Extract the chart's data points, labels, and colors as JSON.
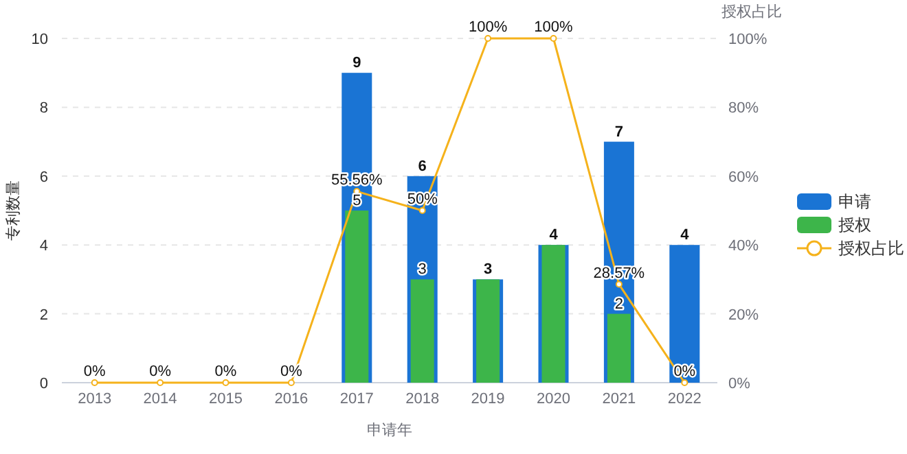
{
  "chart_data": {
    "type": "bar",
    "xlabel": "申请年",
    "ylabel": "专利数量",
    "y2label": "授权占比",
    "categories": [
      "2013",
      "2014",
      "2015",
      "2016",
      "2017",
      "2018",
      "2019",
      "2020",
      "2021",
      "2022"
    ],
    "series": [
      {
        "name": "申请",
        "color": "#1a74d4",
        "values": [
          0,
          0,
          0,
          0,
          9,
          6,
          3,
          4,
          7,
          4
        ],
        "value_labels": [
          null,
          null,
          null,
          null,
          "9",
          "6",
          "3",
          "4",
          "7",
          "4"
        ]
      },
      {
        "name": "授权",
        "color": "#3db54a",
        "values": [
          0,
          0,
          0,
          0,
          5,
          3,
          3,
          4,
          2,
          0
        ],
        "value_labels": [
          null,
          null,
          null,
          null,
          "5",
          "3",
          null,
          null,
          "2",
          null
        ]
      },
      {
        "name": "授权占比",
        "type": "line",
        "axis": "y2",
        "color": "#f5b21b",
        "marker": "circle",
        "values": [
          0,
          0,
          0,
          0,
          55.56,
          50,
          100,
          100,
          28.57,
          0
        ],
        "value_labels": [
          "0%",
          "0%",
          "0%",
          "0%",
          "55.56%",
          "50%",
          "100%",
          "100%",
          "28.57%",
          "0%"
        ]
      }
    ],
    "ylim": [
      0,
      10
    ],
    "yticks": [
      0,
      2,
      4,
      6,
      8,
      10
    ],
    "y2lim": [
      0,
      100
    ],
    "y2ticks": [
      {
        "value": 0,
        "label": "0%"
      },
      {
        "value": 20,
        "label": "20%"
      },
      {
        "value": 40,
        "label": "40%"
      },
      {
        "value": 60,
        "label": "60%"
      },
      {
        "value": 80,
        "label": "80%"
      },
      {
        "value": 100,
        "label": "100%"
      }
    ],
    "grid": "y",
    "legend": "right"
  }
}
